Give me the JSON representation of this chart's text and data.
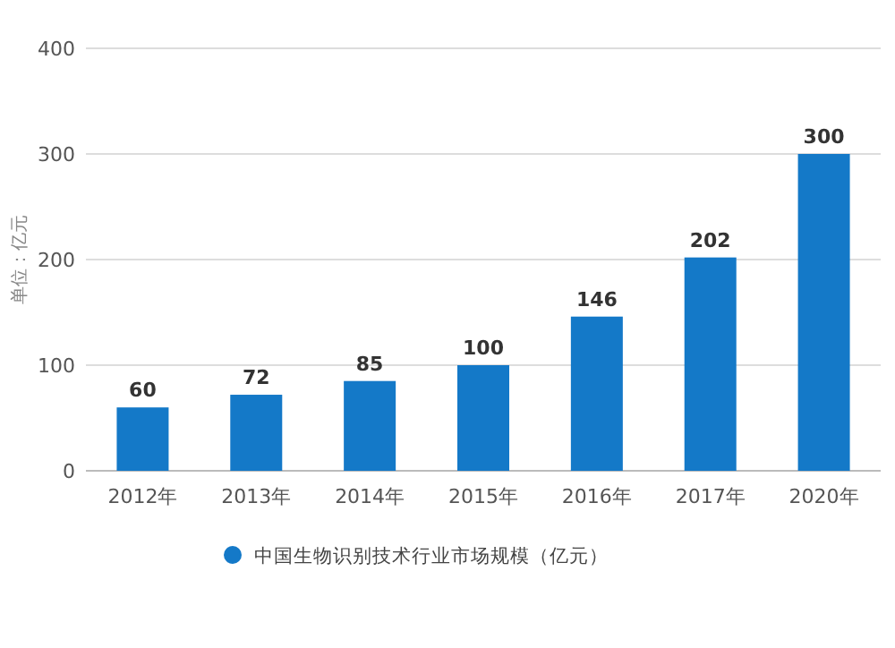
{
  "chart_data": {
    "type": "bar",
    "ylabel": "单位：亿元",
    "categories": [
      "2012年",
      "2013年",
      "2014年",
      "2015年",
      "2016年",
      "2017年",
      "2020年"
    ],
    "series": [
      {
        "name": "中国生物识别技术行业市场规模（亿元）",
        "color": "#1479c8",
        "values": [
          60,
          72,
          85,
          100,
          146,
          202,
          300
        ]
      }
    ],
    "ylim": [
      0,
      400
    ],
    "yticks": [
      0,
      100,
      200,
      300,
      400
    ],
    "grid": "y",
    "legend": "bottom",
    "data_labels": true
  }
}
